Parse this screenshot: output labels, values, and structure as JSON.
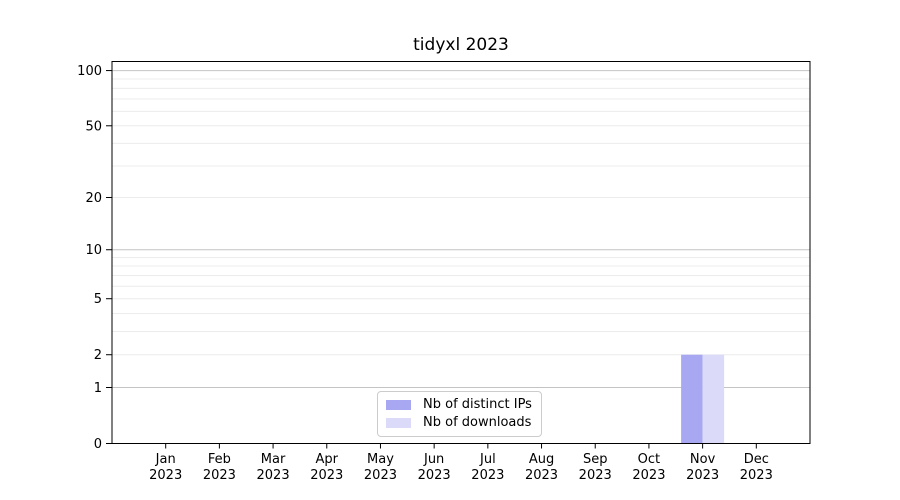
{
  "title": "tidyxl 2023",
  "chart_data": {
    "type": "bar",
    "title": "tidyxl 2023",
    "categories": [
      "Jan 2023",
      "Feb 2023",
      "Mar 2023",
      "Apr 2023",
      "May 2023",
      "Jun 2023",
      "Jul 2023",
      "Aug 2023",
      "Sep 2023",
      "Oct 2023",
      "Nov 2023",
      "Dec 2023"
    ],
    "series": [
      {
        "name": "Nb of distinct IPs",
        "color": "#a7a7f2",
        "values": [
          0,
          0,
          0,
          0,
          0,
          0,
          0,
          0,
          0,
          0,
          2,
          0
        ]
      },
      {
        "name": "Nb of downloads",
        "color": "#dbdbf9",
        "values": [
          0,
          0,
          0,
          0,
          0,
          0,
          0,
          0,
          0,
          0,
          2,
          0
        ]
      }
    ],
    "xlabel": "",
    "ylabel": "",
    "yscale": "log1p",
    "ylim": [
      0,
      112
    ],
    "y_ticks": [
      0,
      1,
      2,
      5,
      10,
      20,
      50,
      100
    ],
    "y_minor_grid": [
      2,
      3,
      4,
      5,
      6,
      7,
      8,
      9,
      20,
      30,
      40,
      50,
      60,
      70,
      80,
      90
    ],
    "y_major_grid": [
      1,
      10,
      100
    ],
    "grid": "horizontal",
    "grid_minor_color": "#ececec",
    "grid_major_color": "#c4c4c4",
    "axis_color": "#000000",
    "legend_position": "lower center",
    "legend_border_color": "#cccccc"
  }
}
